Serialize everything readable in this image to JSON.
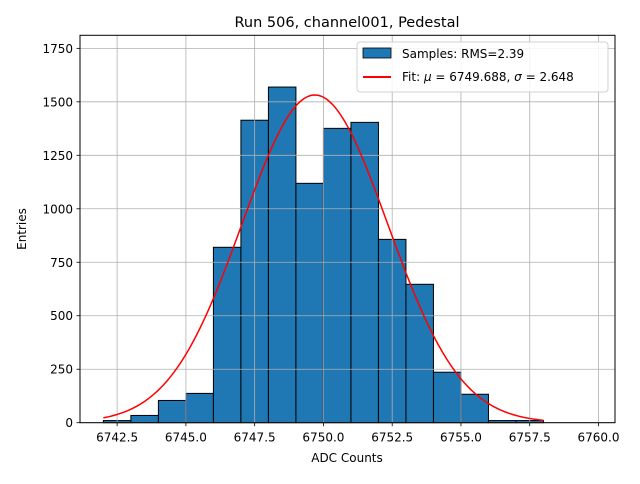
{
  "chart_data": {
    "type": "bar",
    "title": "Run 506, channel001, Pedestal",
    "xlabel": "ADC Counts",
    "ylabel": "Entries",
    "xlim": [
      6741.15,
      6760.6
    ],
    "ylim": [
      0,
      1811
    ],
    "grid": true,
    "legend_position": "top-right",
    "xticks": [
      6742.5,
      6745.0,
      6747.5,
      6750.0,
      6752.5,
      6755.0,
      6757.5,
      6760.0
    ],
    "xtick_labels": [
      "6742.5",
      "6745.0",
      "6747.5",
      "6750.0",
      "6752.5",
      "6755.0",
      "6757.5",
      "6760.0"
    ],
    "yticks": [
      0,
      250,
      500,
      750,
      1000,
      1250,
      1500,
      1750
    ],
    "ytick_labels": [
      "0",
      "250",
      "500",
      "750",
      "1000",
      "1250",
      "1500",
      "1750"
    ],
    "histogram": {
      "name": "Samples: RMS=2.39",
      "bin_edges": [
        6742,
        6743,
        6744,
        6745,
        6746,
        6747,
        6748,
        6749,
        6750,
        6751,
        6752,
        6753,
        6754,
        6755,
        6756,
        6757,
        6758
      ],
      "values": [
        10,
        34,
        104,
        137,
        820,
        1414,
        1569,
        1119,
        1376,
        1404,
        857,
        647,
        236,
        133,
        10,
        10
      ],
      "color": "#1f77b4",
      "edge_color": "#000000"
    },
    "fit": {
      "name": "Fit: μ = 6749.688, σ = 2.648",
      "legend_prefix": "Fit: ",
      "legend_mu": "μ",
      "legend_mid": " = 6749.688, ",
      "legend_sigma": "σ",
      "legend_suffix": " = 2.648",
      "mu": 6749.688,
      "sigma": 2.648,
      "amplitude": 1532,
      "x_range": [
        6742,
        6758
      ],
      "color": "#ff0000"
    }
  }
}
